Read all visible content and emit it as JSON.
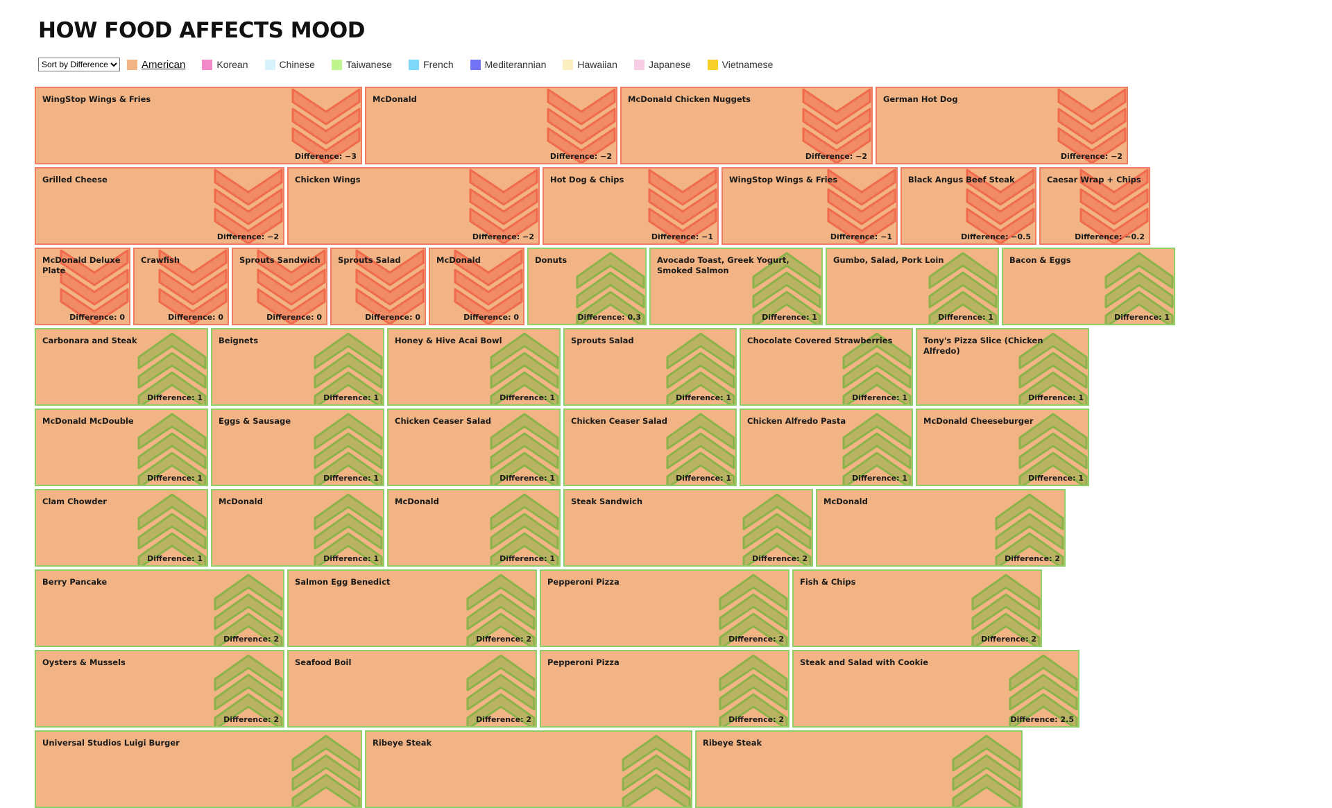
{
  "title": "HOW FOOD AFFECTS MOOD",
  "sort": {
    "selected": "Sort by Difference",
    "options": [
      "Sort by Difference"
    ]
  },
  "legend": [
    {
      "label": "American",
      "color": "#f2b484",
      "active": true
    },
    {
      "label": "Korean",
      "color": "#f28ac8",
      "active": false
    },
    {
      "label": "Chinese",
      "color": "#d9f1fb",
      "active": false
    },
    {
      "label": "Taiwanese",
      "color": "#bff58c",
      "active": false
    },
    {
      "label": "French",
      "color": "#7fd8f8",
      "active": false
    },
    {
      "label": "Mediterannian",
      "color": "#7272f5",
      "active": false
    },
    {
      "label": "Hawaiian",
      "color": "#fbeec0",
      "active": false
    },
    {
      "label": "Japanese",
      "color": "#f7cde3",
      "active": false
    },
    {
      "label": "Vietnamese",
      "color": "#f7d02c",
      "active": false
    }
  ],
  "colors": {
    "tile_fill": "#f2b484",
    "negative_border": "#f07c63",
    "negative_icon": "#f06a4c",
    "positive_border": "#8ecf68",
    "positive_icon": "#8cb34a"
  },
  "icons": {
    "negative": "chevron-down-icon",
    "positive": "chevron-up-icon"
  },
  "diff_prefix": "Difference: ",
  "chart_data": {
    "type": "tile",
    "cuisine": "American",
    "sort": "Difference",
    "items": [
      {
        "name": "WingStop Wings & Fries",
        "difference": -3
      },
      {
        "name": "McDonald",
        "difference": -2
      },
      {
        "name": "McDonald Chicken Nuggets",
        "difference": -2
      },
      {
        "name": "German Hot Dog",
        "difference": -2
      },
      {
        "name": "Grilled Cheese",
        "difference": -2
      },
      {
        "name": "Chicken Wings",
        "difference": -2
      },
      {
        "name": "Hot Dog & Chips",
        "difference": -1
      },
      {
        "name": "WingStop Wings & Fries",
        "difference": -1
      },
      {
        "name": "Black Angus Beef Steak",
        "difference": -0.5
      },
      {
        "name": "Caesar Wrap + Chips",
        "difference": -0.2
      },
      {
        "name": "McDonald Deluxe Plate",
        "difference": 0
      },
      {
        "name": "Crawfish",
        "difference": 0
      },
      {
        "name": "Sprouts Sandwich",
        "difference": 0
      },
      {
        "name": "Sprouts Salad",
        "difference": 0
      },
      {
        "name": "McDonald",
        "difference": 0
      },
      {
        "name": "Donuts",
        "difference": 0.3
      },
      {
        "name": "Avocado Toast, Greek Yogurt, Smoked Salmon",
        "difference": 1
      },
      {
        "name": "Gumbo, Salad, Pork Loin",
        "difference": 1
      },
      {
        "name": "Bacon & Eggs",
        "difference": 1
      },
      {
        "name": "Carbonara and Steak",
        "difference": 1
      },
      {
        "name": "Beignets",
        "difference": 1
      },
      {
        "name": "Honey & Hive Acai Bowl",
        "difference": 1
      },
      {
        "name": "Sprouts Salad",
        "difference": 1
      },
      {
        "name": "Chocolate Covered Strawberries",
        "difference": 1
      },
      {
        "name": "Tony's Pizza Slice (Chicken Alfredo)",
        "difference": 1
      },
      {
        "name": "McDonald McDouble",
        "difference": 1
      },
      {
        "name": "Eggs & Sausage",
        "difference": 1
      },
      {
        "name": "Chicken Ceaser Salad",
        "difference": 1
      },
      {
        "name": "Chicken Ceaser Salad",
        "difference": 1
      },
      {
        "name": "Chicken Alfredo Pasta",
        "difference": 1
      },
      {
        "name": "McDonald Cheeseburger",
        "difference": 1
      },
      {
        "name": "Clam Chowder",
        "difference": 1
      },
      {
        "name": "McDonald",
        "difference": 1
      },
      {
        "name": "McDonald",
        "difference": 1
      },
      {
        "name": "Steak Sandwich",
        "difference": 2
      },
      {
        "name": "McDonald",
        "difference": 2
      },
      {
        "name": "Berry Pancake",
        "difference": 2
      },
      {
        "name": "Salmon Egg Benedict",
        "difference": 2
      },
      {
        "name": "Pepperoni Pizza",
        "difference": 2
      },
      {
        "name": "Fish & Chips",
        "difference": 2
      },
      {
        "name": "Oysters & Mussels",
        "difference": 2
      },
      {
        "name": "Seafood Boil",
        "difference": 2
      },
      {
        "name": "Pepperoni Pizza",
        "difference": 2
      },
      {
        "name": "Steak and Salad with Cookie",
        "difference": 2.5
      },
      {
        "name": "Universal Studios Luigi Burger",
        "difference": null
      },
      {
        "name": "Ribeye Steak",
        "difference": null
      },
      {
        "name": "Ribeye Steak",
        "difference": null
      }
    ]
  }
}
